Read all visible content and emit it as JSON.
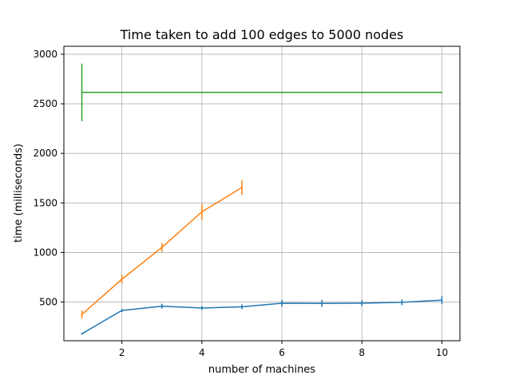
{
  "chart_data": {
    "type": "line",
    "title": "Time taken to add 100 edges to 5000 nodes",
    "xlabel": "number of machines",
    "ylabel": "time (milliseconds)",
    "xlim": [
      0.55,
      10.45
    ],
    "ylim": [
      110,
      3080
    ],
    "x_ticks": [
      2,
      4,
      6,
      8,
      10
    ],
    "y_ticks": [
      500,
      1000,
      1500,
      2000,
      2500,
      3000
    ],
    "grid": true,
    "legend": "none",
    "series": [
      {
        "color": "#1f77b4",
        "x": [
          1,
          2,
          3,
          4,
          5,
          6,
          7,
          8,
          9,
          10
        ],
        "y": [
          180,
          415,
          458,
          440,
          452,
          488,
          487,
          488,
          497,
          520
        ],
        "err": [
          10,
          15,
          25,
          20,
          25,
          35,
          35,
          30,
          30,
          40
        ]
      },
      {
        "color": "#ff7f0e",
        "x": [
          1,
          2,
          3,
          4,
          5
        ],
        "y": [
          375,
          730,
          1050,
          1410,
          1655
        ],
        "err": [
          40,
          45,
          45,
          80,
          75
        ]
      },
      {
        "color": "#2ca02c",
        "x": [
          1,
          10
        ],
        "y": [
          2615,
          2615
        ],
        "err": [
          290,
          0
        ]
      }
    ]
  }
}
